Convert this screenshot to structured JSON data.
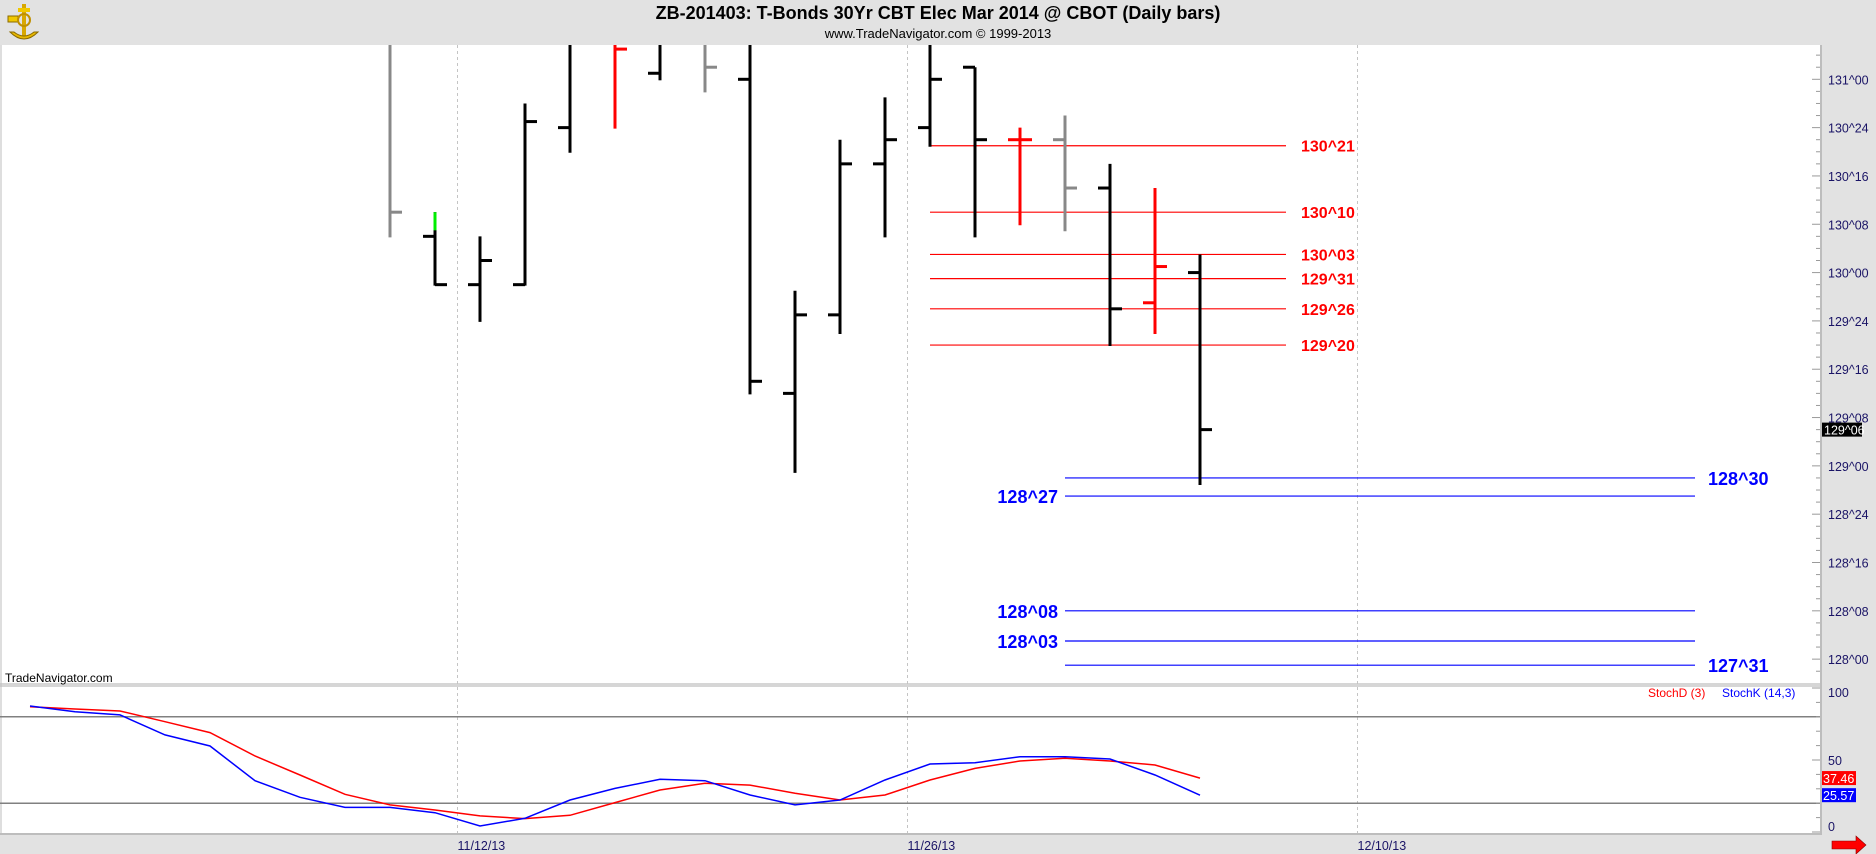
{
  "header": {
    "title": "ZB-201403:  T-Bonds 30Yr CBT Elec Mar 2014 @ CBOT  (Daily bars)",
    "subtitle": "www.TradeNavigator.com © 1999-2013"
  },
  "watermark": "TradeNavigator.com",
  "colors": {
    "up": "#000000",
    "red": "#ff0000",
    "gray": "#888888",
    "green": "#00ee00",
    "blue": "#0000ff",
    "axis_text": "#1a1466"
  },
  "chart_data": [
    {
      "type": "ohlc",
      "title": "ZB-201403 Daily bars",
      "price_format": "points^32nds",
      "ylim": [
        "127^28",
        "131^06"
      ],
      "yticks": [
        "131^00",
        "130^24",
        "130^16",
        "130^08",
        "130^00",
        "129^24",
        "129^16",
        "129^08",
        "129^00",
        "128^24",
        "128^16",
        "128^08",
        "128^00"
      ],
      "last_price": "129^06",
      "x_labels": [
        {
          "index": 1.5,
          "label": "11/12/13"
        },
        {
          "index": 11.5,
          "label": "11/26/13"
        },
        {
          "index": 21.5,
          "label": "12/10/13"
        }
      ],
      "bars": [
        {
          "o": null,
          "h": "131^06",
          "l": "130^06",
          "c": "130^10",
          "color": "gray"
        },
        {
          "o": "130^06",
          "h": "130^10",
          "l": "129^30",
          "c": "129^30",
          "color": "up",
          "accent": {
            "from": "130^10",
            "to": "130^07",
            "color": "green"
          }
        },
        {
          "o": "129^30",
          "h": "130^06",
          "l": "129^24",
          "c": "130^02",
          "color": "up"
        },
        {
          "o": "129^30",
          "h": "130^28",
          "l": "129^30",
          "c": "130^25",
          "color": "up"
        },
        {
          "o": "130^24",
          "h": "131^06",
          "l": "130^20",
          "c": null,
          "color": "up"
        },
        {
          "o": null,
          "h": "131^06",
          "l": "130^24",
          "c": "131^05",
          "color": "red"
        },
        {
          "o": "131^01",
          "h": "131^06",
          "l": "131^00",
          "c": null,
          "color": "up"
        },
        {
          "o": null,
          "h": "131^06",
          "l": "130^30",
          "c": "131^02",
          "color": "gray"
        },
        {
          "o": "131^00",
          "h": "131^06",
          "l": "129^12",
          "c": "129^14",
          "color": "up"
        },
        {
          "o": "129^12",
          "h": "129^29",
          "l": "128^31",
          "c": "129^25",
          "color": "up"
        },
        {
          "o": "129^25",
          "h": "130^22",
          "l": "129^22",
          "c": "130^18",
          "color": "up"
        },
        {
          "o": "130^18",
          "h": "130^29",
          "l": "130^06",
          "c": "130^22",
          "color": "up"
        },
        {
          "o": "130^24",
          "h": "131^06",
          "l": "130^21",
          "c": "131^00",
          "color": "up"
        },
        {
          "o": "131^02",
          "h": "131^02",
          "l": "130^06",
          "c": "130^22",
          "color": "up"
        },
        {
          "o": "130^22",
          "h": "130^24",
          "l": "130^08",
          "c": "130^22",
          "color": "red"
        },
        {
          "o": "130^22",
          "h": "130^26",
          "l": "130^07",
          "c": "130^14",
          "color": "gray"
        },
        {
          "o": "130^14",
          "h": "130^18",
          "l": "129^20",
          "c": "129^26",
          "color": "up"
        },
        {
          "o": "129^27",
          "h": "130^14",
          "l": "129^22",
          "c": "130^01",
          "color": "red"
        },
        {
          "o": "130^00",
          "h": "130^03",
          "l": "128^29",
          "c": "129^06",
          "color": "up"
        }
      ],
      "resistance_levels": [
        {
          "label": "130^21",
          "color": "red"
        },
        {
          "label": "130^10",
          "color": "red"
        },
        {
          "label": "130^03",
          "color": "red"
        },
        {
          "label": "129^31",
          "color": "red"
        },
        {
          "label": "129^26",
          "color": "red"
        },
        {
          "label": "129^20",
          "color": "red"
        }
      ],
      "support_levels": [
        {
          "label": "128^30",
          "color": "blue",
          "label_side": "right"
        },
        {
          "label": "128^27",
          "color": "blue",
          "label_side": "left"
        },
        {
          "label": "128^08",
          "color": "blue",
          "label_side": "left"
        },
        {
          "label": "128^03",
          "color": "blue",
          "label_side": "left"
        },
        {
          "label": "127^31",
          "color": "blue",
          "label_side": "right"
        }
      ]
    },
    {
      "type": "line",
      "title": "Stochastics",
      "ylim": [
        0,
        100
      ],
      "yticks": [
        "100",
        "50",
        "0"
      ],
      "reference_lines": [
        80,
        20
      ],
      "x_start_index": -8,
      "series": [
        {
          "name": "StochD (3)",
          "color": "red",
          "last_label": "37.46",
          "values": [
            87.0,
            85.4,
            84.0,
            76.6,
            69.0,
            52.8,
            39.6,
            26.2,
            18.8,
            15.3,
            11.2,
            9.3,
            11.6,
            20.4,
            29.2,
            33.8,
            32.6,
            26.9,
            22.2,
            25.7,
            36.1,
            44.2,
            49.3,
            51.2,
            49.3,
            46.5,
            37.46
          ]
        },
        {
          "name": "StochK (14,3)",
          "color": "blue",
          "last_label": "25.57",
          "values": [
            87.5,
            83.5,
            81.3,
            67.4,
            59.7,
            35.6,
            24.1,
            17.1,
            17.1,
            13.4,
            4.2,
            9.5,
            22.2,
            30.3,
            36.6,
            35.6,
            25.7,
            18.8,
            22.2,
            36.1,
            47.2,
            48.1,
            52.3,
            52.3,
            50.7,
            39.6,
            25.57
          ]
        }
      ]
    }
  ]
}
